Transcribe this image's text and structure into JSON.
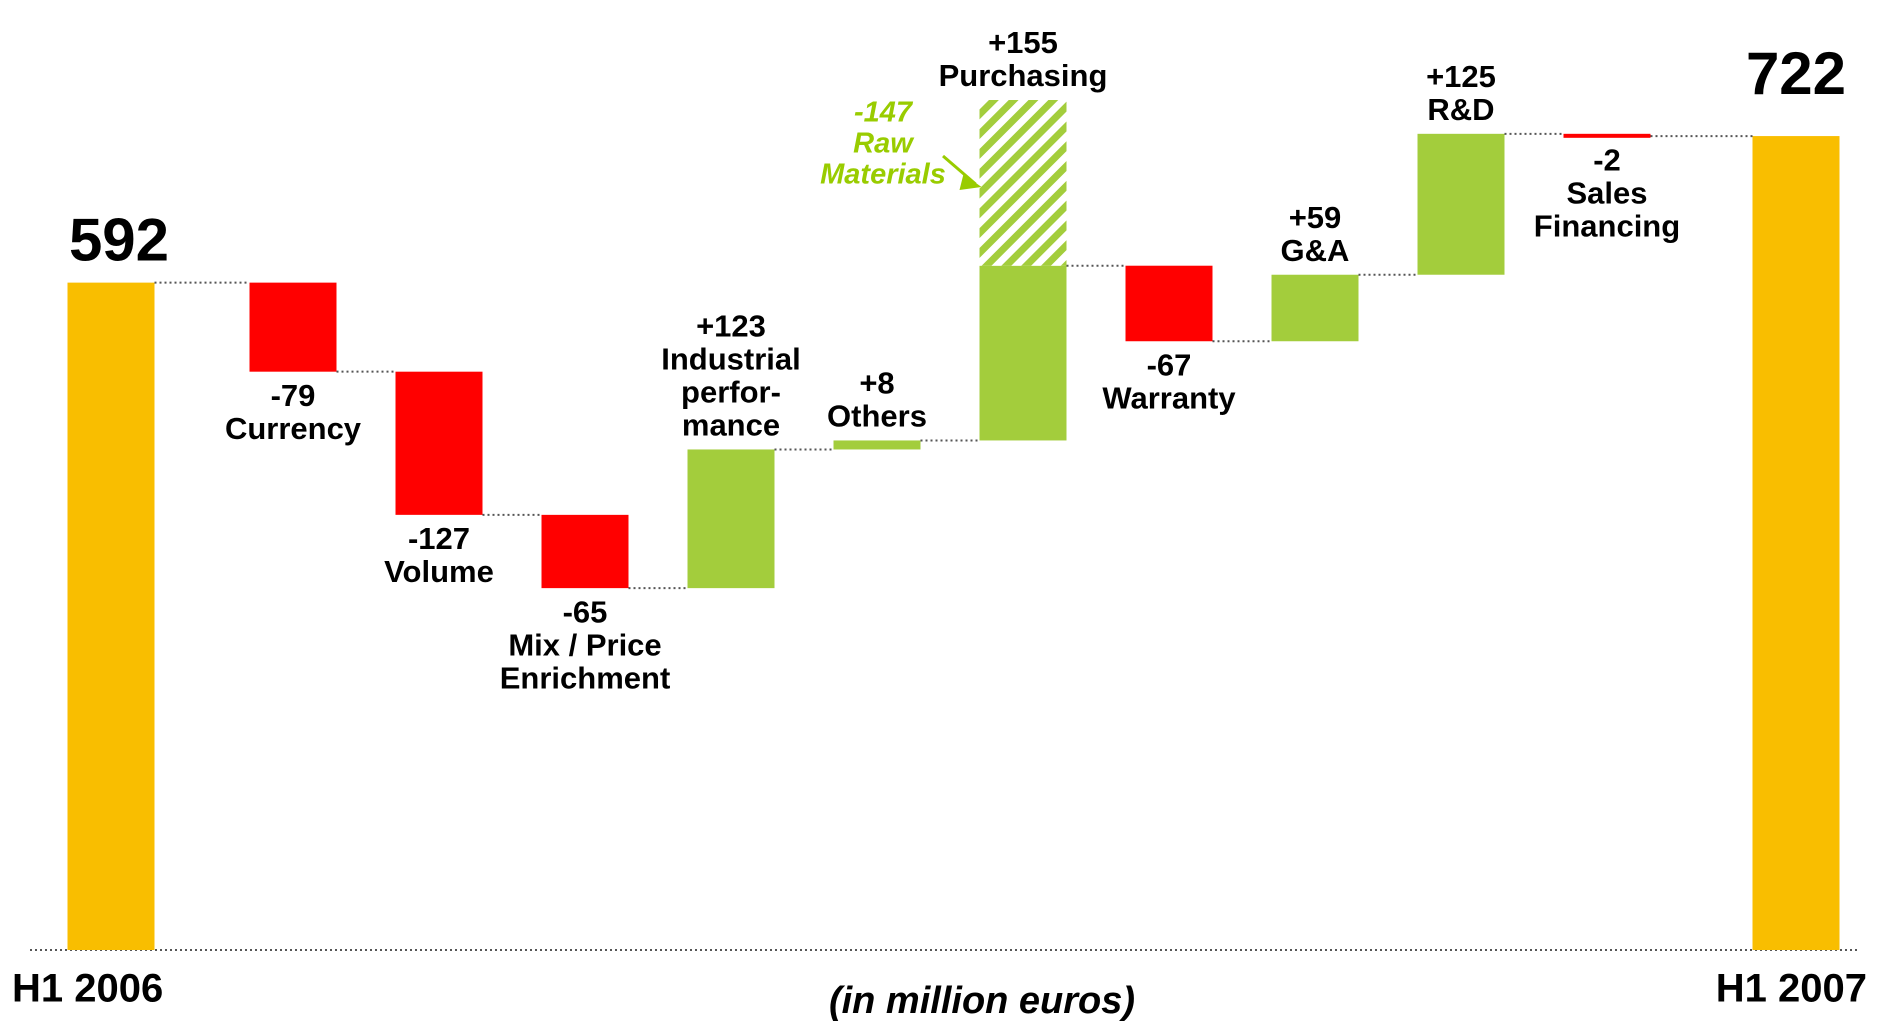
{
  "chart_data": {
    "type": "waterfall",
    "start": {
      "label": "H1 2006",
      "value": 592
    },
    "end": {
      "label": "H1 2007",
      "value": 722
    },
    "categories": [
      [
        "Currency"
      ],
      [
        "Volume"
      ],
      [
        "Mix / Price",
        "Enrichment"
      ],
      [
        "Industrial",
        "perfor-",
        "mance"
      ],
      [
        "Others"
      ],
      [
        "Purchasing"
      ],
      [
        "Warranty"
      ],
      [
        "G&A"
      ],
      [
        "R&D"
      ],
      [
        "Sales",
        "Financing"
      ]
    ],
    "values": [
      -79,
      -127,
      -65,
      123,
      8,
      155,
      -67,
      59,
      125,
      -2
    ],
    "value_labels": [
      "-79",
      "-127",
      "-65",
      "+123",
      "+8",
      "+155",
      "-67",
      "+59",
      "+125",
      "-2"
    ],
    "annotation": {
      "lines": [
        "Raw",
        "Materials"
      ],
      "value": -147,
      "value_label": "-147",
      "category": "Purchasing"
    },
    "subtitle": "(in million euros)",
    "colors": {
      "total": "#f9be00",
      "negative": "#ff0000",
      "positive": "#a3cd3c",
      "annotation": "#99cc00"
    }
  }
}
